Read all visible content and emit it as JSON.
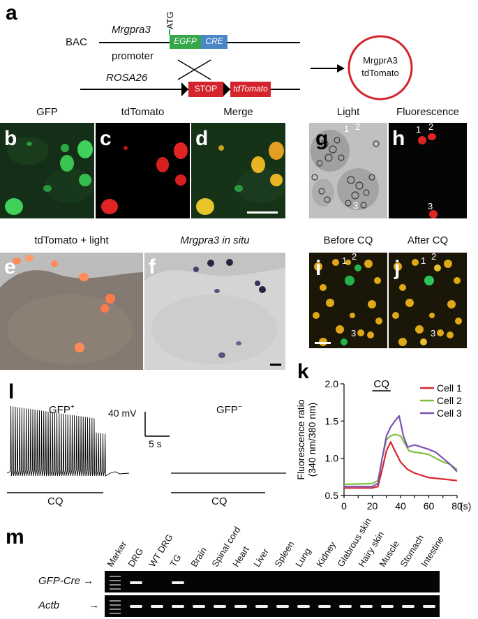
{
  "panel_labels": {
    "a": "a",
    "b": "b",
    "c": "c",
    "d": "d",
    "e": "e",
    "f": "f",
    "g": "g",
    "h": "h",
    "i": "i",
    "j": "j",
    "k": "k",
    "l": "l",
    "m": "m"
  },
  "a": {
    "bac": "BAC",
    "mrgpra3": "Mrgpra3",
    "promoter": "promoter",
    "atg": "ATG",
    "egfp": "EGFP",
    "cre": "CRE",
    "rosa26": "ROSA26",
    "stop": "STOP",
    "tdtomato": "tdTomato",
    "result_line1": "MrgprA3",
    "result_line2": "tdTomato",
    "colors": {
      "green": "#35a84a",
      "blue": "#4a86c5",
      "red": "#d3232b"
    }
  },
  "titles": {
    "gfp": "GFP",
    "tdtomato": "tdTomato",
    "merge": "Merge",
    "light": "Light",
    "fluorescence": "Fluorescence",
    "tdtomato_light": "tdTomato + light",
    "in_situ": "Mrgpra3 in situ",
    "before_cq": "Before CQ",
    "after_cq": "After CQ"
  },
  "cell_numbers": [
    "1",
    "2",
    "3"
  ],
  "l": {
    "gfp_pos": "GFP",
    "gfp_pos_sup": "+",
    "gfp_neg": "GFP",
    "gfp_neg_sup": "−",
    "scale_v": "40 mV",
    "scale_t": "5 s",
    "cq": "CQ"
  },
  "chart_data": {
    "type": "line",
    "ylabel_line1": "Fluorescence ratio",
    "ylabel_line2": "(340 nm/380 nm)",
    "xunit": "(s)",
    "stimulus": "CQ",
    "stimulus_range": [
      20,
      33
    ],
    "xlim": [
      0,
      80
    ],
    "ylim": [
      0.5,
      2.0
    ],
    "xticks": [
      0,
      10,
      20,
      30,
      40,
      50,
      60,
      70,
      80
    ],
    "yticks": [
      0.5,
      1.0,
      1.5,
      2.0
    ],
    "ytick_labels": [
      "0.5",
      "1.0",
      "1.5",
      "2.0"
    ],
    "legend_position": "top-right",
    "series": [
      {
        "name": "Cell 1",
        "color": "#d8262f",
        "x": [
          0,
          20,
          24,
          27,
          30,
          33,
          36,
          40,
          45,
          50,
          60,
          70,
          80
        ],
        "y": [
          0.6,
          0.6,
          0.62,
          0.85,
          1.1,
          1.22,
          1.1,
          0.95,
          0.85,
          0.8,
          0.74,
          0.72,
          0.7
        ]
      },
      {
        "name": "Cell 2",
        "color": "#7fbf3f",
        "x": [
          0,
          20,
          24,
          27,
          30,
          33,
          36,
          40,
          43,
          46,
          50,
          55,
          60,
          65,
          70,
          75,
          80
        ],
        "y": [
          0.65,
          0.66,
          0.7,
          1.0,
          1.25,
          1.3,
          1.32,
          1.3,
          1.2,
          1.1,
          1.08,
          1.07,
          1.05,
          1.0,
          0.95,
          0.92,
          0.85
        ]
      },
      {
        "name": "Cell 3",
        "color": "#7a52b5",
        "x": [
          0,
          20,
          24,
          27,
          30,
          33,
          36,
          39,
          42,
          45,
          50,
          55,
          60,
          65,
          70,
          75,
          80
        ],
        "y": [
          0.62,
          0.62,
          0.66,
          1.0,
          1.3,
          1.42,
          1.5,
          1.57,
          1.3,
          1.15,
          1.18,
          1.15,
          1.12,
          1.08,
          1.0,
          0.92,
          0.82
        ]
      }
    ]
  },
  "m": {
    "lanes": [
      "Marker",
      "DRG",
      "WT DRG",
      "TG",
      "Brain",
      "Spinal cord",
      "Heart",
      "Liver",
      "Spleen",
      "Lung",
      "Kidney",
      "Glabrous skin",
      "Hairy skin",
      "Muscle",
      "Stomach",
      "Intestine"
    ],
    "gfp_cre_present": [
      false,
      true,
      false,
      true,
      false,
      false,
      false,
      false,
      false,
      false,
      false,
      false,
      false,
      false,
      false,
      false
    ],
    "actb_present": [
      false,
      true,
      true,
      true,
      true,
      true,
      true,
      true,
      true,
      true,
      true,
      true,
      true,
      true,
      true,
      true
    ],
    "row1": "GFP-Cre",
    "row2": "Actb",
    "arrow": "→"
  }
}
